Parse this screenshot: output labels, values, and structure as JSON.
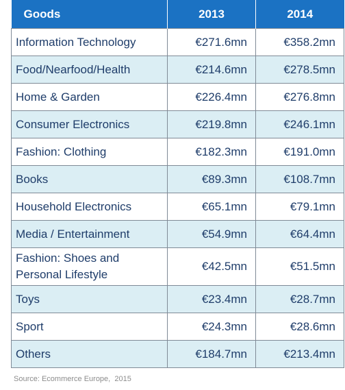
{
  "table": {
    "headers": {
      "goods": "Goods",
      "year1": "2013",
      "year2": "2014"
    },
    "rows": [
      {
        "goods": "Information Technology",
        "y2013": "€271.6mn",
        "y2014": "€358.2mn"
      },
      {
        "goods": "Food/Nearfood/Health",
        "y2013": "€214.6mn",
        "y2014": "€278.5mn"
      },
      {
        "goods": "Home & Garden",
        "y2013": "€226.4mn",
        "y2014": "€276.8mn"
      },
      {
        "goods": "Consumer Electronics",
        "y2013": "€219.8mn",
        "y2014": "€246.1mn"
      },
      {
        "goods": "Fashion: Clothing",
        "y2013": "€182.3mn",
        "y2014": "€191.0mn"
      },
      {
        "goods": "Books",
        "y2013": "€89.3mn",
        "y2014": "€108.7mn"
      },
      {
        "goods": "Household Electronics",
        "y2013": "€65.1mn",
        "y2014": "€79.1mn"
      },
      {
        "goods": "Media / Entertainment",
        "y2013": "€54.9mn",
        "y2014": "€64.4mn"
      },
      {
        "goods": "Fashion: Shoes and Personal Lifestyle",
        "y2013": "€42.5mn",
        "y2014": "€51.5mn"
      },
      {
        "goods": "Toys",
        "y2013": "€23.4mn",
        "y2014": "€28.7mn"
      },
      {
        "goods": "Sport",
        "y2013": "€24.3mn",
        "y2014": "€28.6mn"
      },
      {
        "goods": "Others",
        "y2013": "€184.7mn",
        "y2014": "€213.4mn"
      }
    ]
  },
  "source": "Source: Ecommerce Europe,  2015",
  "colors": {
    "header_bg": "#1b72c3",
    "row_alt_bg": "#dbeef4",
    "text": "#1f3d6a"
  },
  "chart_data": {
    "type": "table",
    "columns": [
      "Goods",
      "2013",
      "2014"
    ],
    "categories": [
      "Information Technology",
      "Food/Nearfood/Health",
      "Home & Garden",
      "Consumer Electronics",
      "Fashion: Clothing",
      "Books",
      "Household Electronics",
      "Media / Entertainment",
      "Fashion: Shoes and Personal Lifestyle",
      "Toys",
      "Sport",
      "Others"
    ],
    "series": [
      {
        "name": "2013",
        "values": [
          271.6,
          214.6,
          226.4,
          219.8,
          182.3,
          89.3,
          65.1,
          54.9,
          42.5,
          23.4,
          24.3,
          184.7
        ]
      },
      {
        "name": "2014",
        "values": [
          358.2,
          278.5,
          276.8,
          246.1,
          191.0,
          108.7,
          79.1,
          64.4,
          51.5,
          28.7,
          28.6,
          213.4
        ]
      }
    ],
    "unit": "€ mn"
  }
}
